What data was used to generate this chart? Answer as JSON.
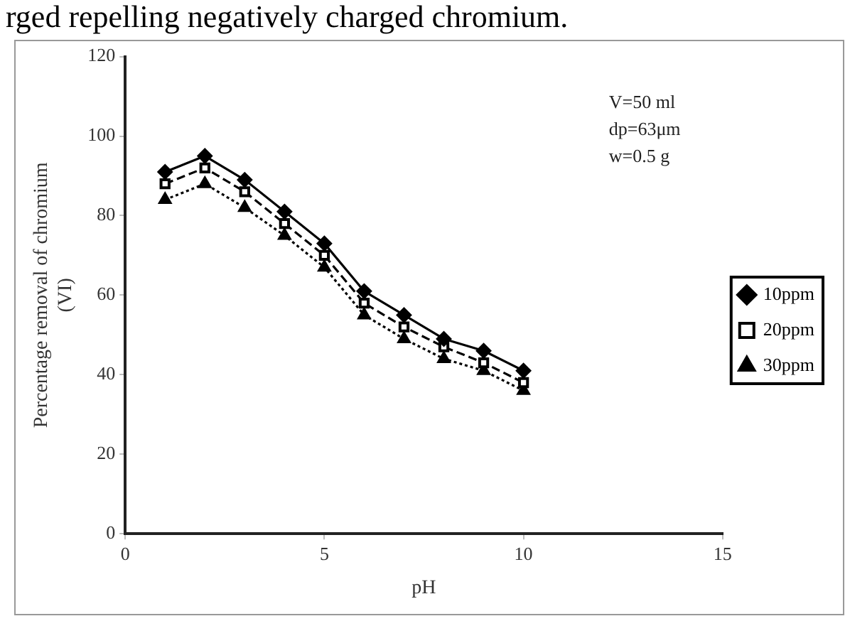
{
  "chart_data": {
    "type": "line",
    "xlabel": "pH",
    "ylabel": "Percentage removal of chromium (VI)",
    "annotations": [
      "rged repelling negatively charged chromium.",
      "V=50 ml\ndp=63μm\nw=0.5 g"
    ],
    "x": [
      1,
      2,
      3,
      4,
      5,
      6,
      7,
      8,
      9,
      10
    ],
    "series": [
      {
        "name": "10ppm",
        "color": "#000000",
        "marker": "diamond",
        "line_style": "solid",
        "values": [
          91,
          95,
          89,
          81,
          73,
          61,
          55,
          49,
          46,
          41
        ]
      },
      {
        "name": "20ppm",
        "color": "#000000",
        "marker": "square",
        "line_style": "dashed",
        "values": [
          88,
          92,
          86,
          78,
          70,
          58,
          52,
          47,
          43,
          38
        ]
      },
      {
        "name": "30ppm",
        "color": "#000000",
        "marker": "triangle",
        "line_style": "dotted",
        "values": [
          84,
          88,
          82,
          75,
          67,
          55,
          49,
          44,
          41,
          36
        ]
      }
    ],
    "xlim": [
      0,
      15
    ],
    "xticks": [
      0,
      5,
      10,
      15
    ],
    "ylim": [
      0,
      120
    ],
    "yticks": [
      0,
      20,
      40,
      60,
      80,
      100,
      120
    ],
    "grid": false,
    "legend": "right"
  }
}
